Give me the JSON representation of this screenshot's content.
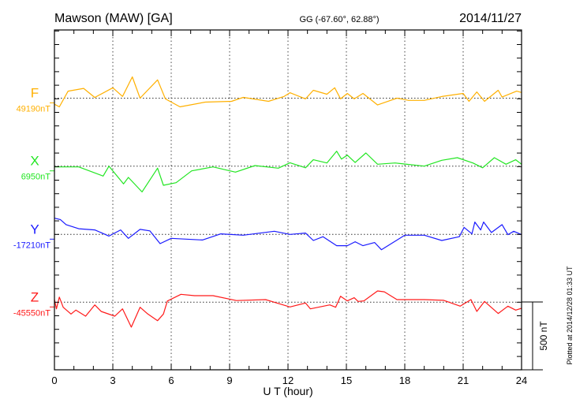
{
  "header": {
    "station": "Mawson (MAW)  [GA]",
    "coords": "GG (-67.60°,  62.88°)",
    "date": "2014/11/27"
  },
  "footer": {
    "plotted": "Plotted at 2014/12/28 01:33 UT"
  },
  "chart_data": {
    "type": "line",
    "title": "Mawson (MAW)  [GA]",
    "xlabel": "U T (hour)",
    "xlim": [
      0,
      24
    ],
    "xticks": [
      "0",
      "3",
      "6",
      "9",
      "12",
      "15",
      "18",
      "21",
      "24"
    ],
    "grid": "dotted vertical every 3 hours; dotted baseline per component",
    "scale_bar": {
      "label": "500 nT",
      "value_nT": 500
    },
    "series": [
      {
        "name": "F",
        "baseline_label": "49190nT",
        "baseline_nT": 49190,
        "color": "#ffb000",
        "points": [
          [
            0,
            -45
          ],
          [
            0.25,
            -64
          ],
          [
            0.7,
            52
          ],
          [
            1.5,
            72
          ],
          [
            2.07,
            5
          ],
          [
            3,
            77
          ],
          [
            3.5,
            13
          ],
          [
            4,
            157
          ],
          [
            4.4,
            0
          ],
          [
            5.3,
            135
          ],
          [
            5.7,
            -5
          ],
          [
            6.45,
            -64
          ],
          [
            7.75,
            -29
          ],
          [
            9.1,
            -23
          ],
          [
            9.7,
            6
          ],
          [
            11,
            -23
          ],
          [
            11.8,
            13
          ],
          [
            12.1,
            40
          ],
          [
            12.9,
            -5
          ],
          [
            13.3,
            58
          ],
          [
            14,
            29
          ],
          [
            14.4,
            77
          ],
          [
            14.7,
            -5
          ],
          [
            15.05,
            35
          ],
          [
            15.4,
            -5
          ],
          [
            15.85,
            35
          ],
          [
            16.6,
            -50
          ],
          [
            17.6,
            0
          ],
          [
            18.2,
            -16
          ],
          [
            19,
            -16
          ],
          [
            19.9,
            12
          ],
          [
            21,
            35
          ],
          [
            21.3,
            -23
          ],
          [
            21.7,
            46
          ],
          [
            22.1,
            -23
          ],
          [
            22.8,
            58
          ],
          [
            23,
            8
          ],
          [
            23.75,
            52
          ],
          [
            24,
            42
          ]
        ]
      },
      {
        "name": "X",
        "baseline_label": "6950nT",
        "baseline_nT": 6950,
        "color": "#22e622",
        "points": [
          [
            0,
            -6
          ],
          [
            1.25,
            -6
          ],
          [
            2.5,
            -73
          ],
          [
            2.8,
            0
          ],
          [
            3.55,
            -131
          ],
          [
            3.8,
            -83
          ],
          [
            4.5,
            -190
          ],
          [
            5.3,
            -15
          ],
          [
            5.6,
            -141
          ],
          [
            6.25,
            -122
          ],
          [
            7.05,
            -35
          ],
          [
            8.15,
            -6
          ],
          [
            9.3,
            -44
          ],
          [
            10.3,
            4
          ],
          [
            11.5,
            -15
          ],
          [
            12.1,
            25
          ],
          [
            12.9,
            -12
          ],
          [
            13.3,
            47
          ],
          [
            14,
            23
          ],
          [
            14.5,
            110
          ],
          [
            14.75,
            52
          ],
          [
            15.05,
            81
          ],
          [
            15.45,
            27
          ],
          [
            16,
            97
          ],
          [
            16.6,
            14
          ],
          [
            17.5,
            23
          ],
          [
            19,
            0
          ],
          [
            19.9,
            43
          ],
          [
            20.7,
            62
          ],
          [
            21.5,
            23
          ],
          [
            22,
            -12
          ],
          [
            22.6,
            62
          ],
          [
            23.2,
            14
          ],
          [
            23.7,
            47
          ],
          [
            24,
            14
          ]
        ]
      },
      {
        "name": "Y",
        "baseline_label": "-17210nT",
        "baseline_nT": -17210,
        "color": "#1a1aff",
        "points": [
          [
            0,
            120
          ],
          [
            0.3,
            110
          ],
          [
            0.6,
            72
          ],
          [
            1.25,
            42
          ],
          [
            2.07,
            33
          ],
          [
            2.8,
            -12
          ],
          [
            3.4,
            33
          ],
          [
            3.8,
            -29
          ],
          [
            4.4,
            37
          ],
          [
            4.9,
            26
          ],
          [
            5.43,
            -68
          ],
          [
            6,
            -29
          ],
          [
            7.6,
            -41
          ],
          [
            8.55,
            4
          ],
          [
            9.7,
            -6
          ],
          [
            11.3,
            23
          ],
          [
            12.1,
            0
          ],
          [
            12.9,
            10
          ],
          [
            13.3,
            -45
          ],
          [
            13.8,
            -17
          ],
          [
            14.5,
            -83
          ],
          [
            15.05,
            -83
          ],
          [
            15.45,
            -54
          ],
          [
            15.85,
            -83
          ],
          [
            16.45,
            -60
          ],
          [
            16.8,
            -113
          ],
          [
            18,
            -6
          ],
          [
            19,
            -6
          ],
          [
            19.9,
            -45
          ],
          [
            20.8,
            -17
          ],
          [
            21.05,
            52
          ],
          [
            21.45,
            4
          ],
          [
            21.6,
            91
          ],
          [
            21.9,
            33
          ],
          [
            22.05,
            91
          ],
          [
            22.45,
            14
          ],
          [
            23,
            72
          ],
          [
            23.3,
            -2
          ],
          [
            23.6,
            23
          ],
          [
            24,
            -2
          ]
        ]
      },
      {
        "name": "Z",
        "baseline_label": "-45550nT",
        "baseline_nT": -45550,
        "color": "#ff1a1a",
        "points": [
          [
            0,
            19
          ],
          [
            0.1,
            -49
          ],
          [
            0.25,
            38
          ],
          [
            0.45,
            -37
          ],
          [
            0.85,
            -87
          ],
          [
            1.1,
            -58
          ],
          [
            1.6,
            -103
          ],
          [
            2.07,
            -20
          ],
          [
            2.4,
            -68
          ],
          [
            3.1,
            -103
          ],
          [
            3.5,
            -49
          ],
          [
            3.95,
            -184
          ],
          [
            4.4,
            -37
          ],
          [
            4.8,
            -87
          ],
          [
            5.3,
            -136
          ],
          [
            5.6,
            -87
          ],
          [
            5.8,
            9
          ],
          [
            6.5,
            58
          ],
          [
            7.2,
            48
          ],
          [
            8.15,
            48
          ],
          [
            9.35,
            12
          ],
          [
            10.85,
            19
          ],
          [
            12.1,
            -35
          ],
          [
            12.9,
            -6
          ],
          [
            13.15,
            -49
          ],
          [
            14.15,
            -20
          ],
          [
            14.45,
            -37
          ],
          [
            14.7,
            44
          ],
          [
            15.05,
            10
          ],
          [
            15.4,
            33
          ],
          [
            15.6,
            6
          ],
          [
            15.9,
            10
          ],
          [
            16.6,
            83
          ],
          [
            16.95,
            77
          ],
          [
            17.6,
            19
          ],
          [
            19,
            19
          ],
          [
            20,
            14
          ],
          [
            20.85,
            -29
          ],
          [
            21.4,
            19
          ],
          [
            21.7,
            -68
          ],
          [
            22.1,
            6
          ],
          [
            22.8,
            -83
          ],
          [
            23.3,
            -29
          ],
          [
            23.7,
            -58
          ],
          [
            24,
            -45
          ]
        ]
      }
    ]
  }
}
